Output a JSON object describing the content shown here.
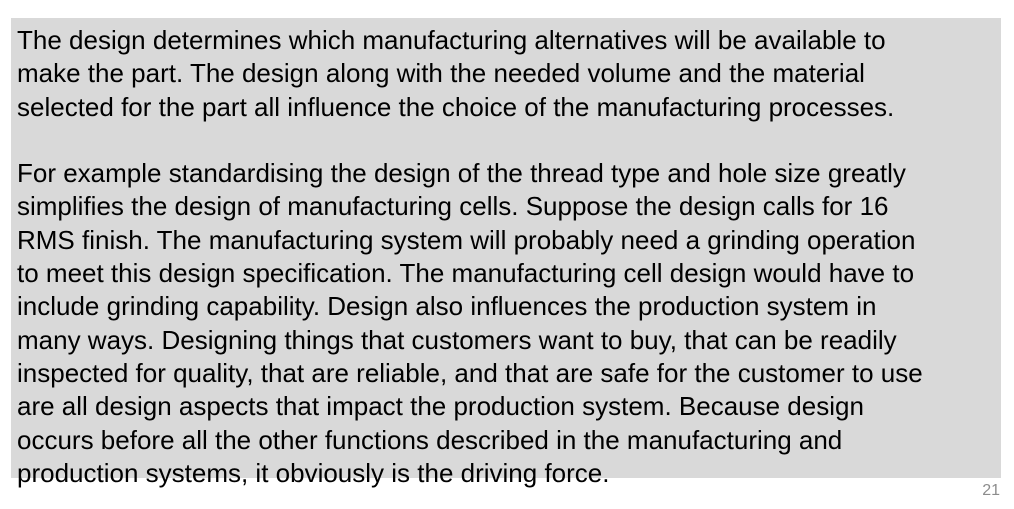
{
  "slide": {
    "paragraph_1": [
      "The design determines which manufacturing alternatives will be available to",
      "make the part. The design along with the needed volume and the material",
      "selected for the part all influence the choice of the manufacturing processes."
    ],
    "paragraph_2": [
      "For example standardising the design of the thread type and hole size greatly",
      "simplifies the design of manufacturing cells. Suppose the design calls for 16",
      "RMS finish. The manufacturing system will probably need a grinding operation",
      "to meet this design specification. The manufacturing cell design would have to",
      "include grinding capability. Design also influences the production system in",
      "many ways. Designing things that customers want to buy, that can be readily",
      "inspected for quality, that are reliable, and that are safe for the customer to use",
      "are all design aspects that impact the production system. Because design",
      "occurs before all the other functions described in the manufacturing and",
      "production systems, it obviously is the driving force."
    ],
    "page_number": "21",
    "box_color": "#d9d9d9"
  }
}
